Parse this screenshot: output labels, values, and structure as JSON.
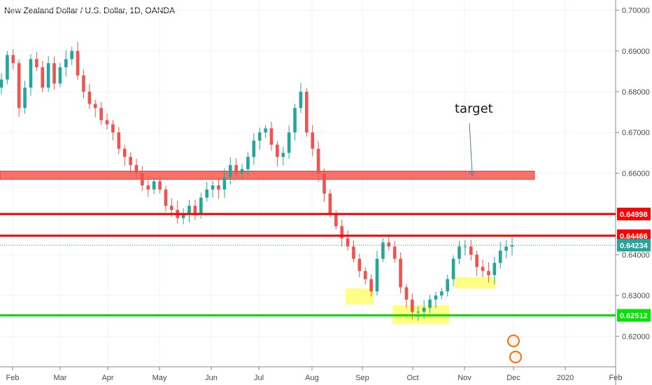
{
  "title": "New Zealand Dollar / U.S. Dollar, 1D, OANDA",
  "colors": {
    "up": "#26a69a",
    "down": "#ef5350",
    "red_line": "#ff0000",
    "green_line": "#00e600",
    "last_price": "#26a69a",
    "zone_fill": "#f44336",
    "highlight": "#ffff66"
  },
  "chart_data": {
    "type": "line",
    "title": "New Zealand Dollar / U.S. Dollar, 1D, OANDA",
    "xlabel": "",
    "ylabel": "",
    "x_ticks": [
      "Feb",
      "Mar",
      "Apr",
      "May",
      "Jun",
      "Jul",
      "Aug",
      "Sep",
      "Oct",
      "Nov",
      "Dec",
      "2020",
      "Feb"
    ],
    "y_ticks": [
      "0.70000",
      "0.69000",
      "0.68000",
      "0.67000",
      "0.66000",
      "0.64000",
      "0.63000",
      "0.62000"
    ],
    "ylim": [
      0.6125,
      0.7025
    ],
    "grid": true,
    "price_levels": [
      {
        "label": "0.64998",
        "value": 0.64998,
        "color": "#ff0000"
      },
      {
        "label": "0.64466",
        "value": 0.64466,
        "color": "#ff0000"
      },
      {
        "label": "0.64234",
        "value": 0.64234,
        "color": "#26a69a"
      },
      {
        "label": "0.62512",
        "value": 0.62512,
        "color": "#00e600"
      }
    ],
    "resistance_zone": {
      "low": 0.6585,
      "high": 0.6605
    },
    "annotations": [
      {
        "text": "target"
      }
    ],
    "series": [
      {
        "x": [
          "Jan 28",
          "Jan 31",
          "Feb 4",
          "Feb 7",
          "Feb 11",
          "Feb 14",
          "Feb 18",
          "Feb 21",
          "Feb 25",
          "Feb 28",
          "Mar 4",
          "Mar 7",
          "Mar 11",
          "Mar 14",
          "Mar 18",
          "Mar 21",
          "Mar 25",
          "Mar 28",
          "Apr 1",
          "Apr 4",
          "Apr 8",
          "Apr 11",
          "Apr 15",
          "Apr 18",
          "Apr 22",
          "Apr 25",
          "Apr 29",
          "May 2",
          "May 6",
          "May 9",
          "May 13",
          "May 16",
          "May 20",
          "May 23",
          "May 27",
          "May 30",
          "Jun 3",
          "Jun 6",
          "Jun 10",
          "Jun 13",
          "Jun 17",
          "Jun 20",
          "Jun 24",
          "Jun 27",
          "Jul 1",
          "Jul 4",
          "Jul 8",
          "Jul 11",
          "Jul 15",
          "Jul 18",
          "Jul 22",
          "Jul 25",
          "Jul 29",
          "Aug 1",
          "Aug 5",
          "Aug 8",
          "Aug 12",
          "Aug 15",
          "Aug 19",
          "Aug 22",
          "Aug 26",
          "Aug 29",
          "Sep 2",
          "Sep 5",
          "Sep 9",
          "Sep 12",
          "Sep 16",
          "Sep 19",
          "Sep 23",
          "Sep 26",
          "Sep 30",
          "Oct 3",
          "Oct 7",
          "Oct 10",
          "Oct 14",
          "Oct 17",
          "Oct 21",
          "Oct 24",
          "Oct 28",
          "Oct 31",
          "Nov 4",
          "Nov 7",
          "Nov 11",
          "Nov 14",
          "Nov 18",
          "Nov 21",
          "Nov 25",
          "Nov 28"
        ],
        "values": [
          0.683,
          0.689,
          0.687,
          0.676,
          0.681,
          0.688,
          0.686,
          0.681,
          0.687,
          0.682,
          0.686,
          0.688,
          0.69,
          0.684,
          0.68,
          0.677,
          0.676,
          0.673,
          0.672,
          0.67,
          0.666,
          0.664,
          0.662,
          0.66,
          0.657,
          0.656,
          0.658,
          0.656,
          0.652,
          0.651,
          0.649,
          0.65,
          0.652,
          0.65,
          0.654,
          0.656,
          0.657,
          0.656,
          0.659,
          0.662,
          0.66,
          0.661,
          0.664,
          0.668,
          0.67,
          0.671,
          0.667,
          0.664,
          0.665,
          0.67,
          0.676,
          0.68,
          0.67,
          0.666,
          0.66,
          0.655,
          0.65,
          0.647,
          0.644,
          0.642,
          0.639,
          0.636,
          0.634,
          0.631,
          0.639,
          0.643,
          0.642,
          0.639,
          0.632,
          0.629,
          0.626,
          0.626,
          0.627,
          0.629,
          0.63,
          0.631,
          0.634,
          0.639,
          0.642,
          0.642,
          0.64,
          0.637,
          0.636,
          0.635,
          0.638,
          0.641,
          0.642,
          0.6423
        ]
      }
    ]
  }
}
